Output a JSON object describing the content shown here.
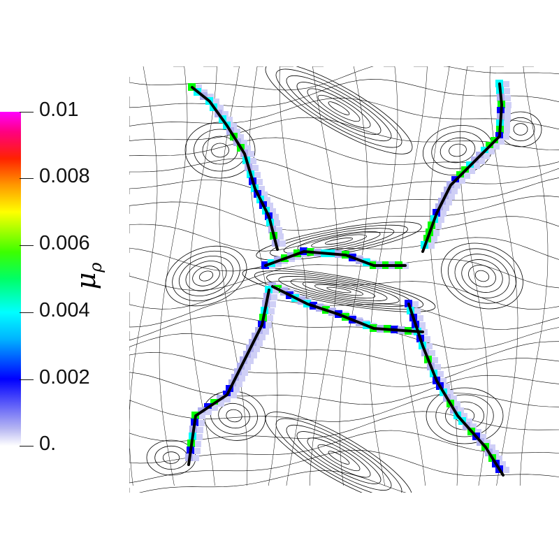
{
  "colorbar": {
    "title": "μ",
    "title_subscript": "ρ",
    "tick_labels": [
      "0.01",
      "0.008",
      "0.006",
      "0.004",
      "0.002",
      "0."
    ],
    "colors": [
      "#ffffff",
      "#0000ff",
      "#00ffff",
      "#00ff00",
      "#ffff00",
      "#ff0000",
      "#ff00ff"
    ]
  },
  "plot": {
    "contour_color": "#000000",
    "shock_line_color": "#000000"
  }
}
